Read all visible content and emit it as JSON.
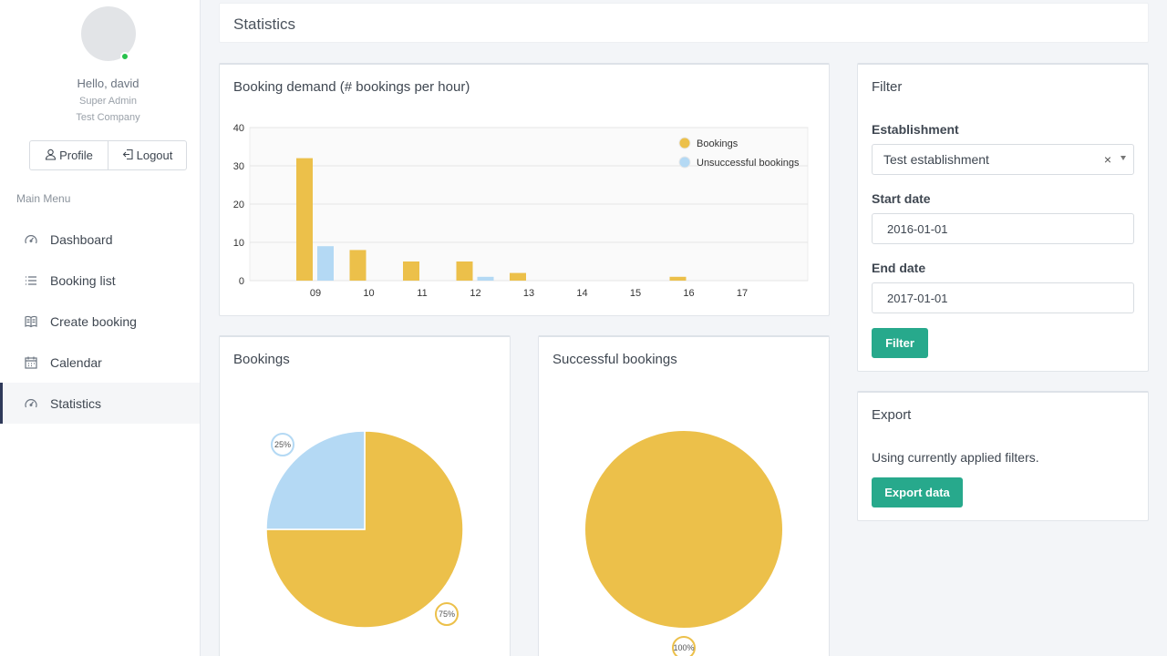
{
  "user": {
    "greeting": "Hello, david",
    "role": "Super Admin",
    "company": "Test Company",
    "profile_label": "Profile",
    "logout_label": "Logout"
  },
  "menu": {
    "title": "Main Menu",
    "items": [
      {
        "label": "Dashboard",
        "icon": "gauge-icon"
      },
      {
        "label": "Booking list",
        "icon": "list-icon"
      },
      {
        "label": "Create booking",
        "icon": "book-icon"
      },
      {
        "label": "Calendar",
        "icon": "calendar-icon"
      },
      {
        "label": "Statistics",
        "icon": "gauge-icon",
        "active": true
      }
    ]
  },
  "header": {
    "title": "Statistics"
  },
  "demand_panel": {
    "title": "Booking demand (# bookings per hour)"
  },
  "bookings_panel": {
    "title": "Bookings"
  },
  "successful_panel": {
    "title": "Successful bookings"
  },
  "filter": {
    "title": "Filter",
    "establishment_label": "Establishment",
    "establishment_value": "Test establishment",
    "clear_symbol": "×",
    "start_label": "Start date",
    "start_value": "2016-01-01",
    "end_label": "End date",
    "end_value": "2017-01-01",
    "button_label": "Filter"
  },
  "export": {
    "title": "Export",
    "description": "Using currently applied filters.",
    "button_label": "Export data"
  },
  "colors": {
    "bookings": "#ecc04a",
    "unsuccessful": "#b4d9f4",
    "accent": "#27a98c"
  },
  "chart_data": [
    {
      "type": "bar",
      "categories": [
        "09",
        "10",
        "11",
        "12",
        "13",
        "14",
        "15",
        "16",
        "17"
      ],
      "series": [
        {
          "name": "Bookings",
          "values": [
            32,
            8,
            5,
            5,
            2,
            0,
            0,
            1,
            0
          ]
        },
        {
          "name": "Unsuccessful bookings",
          "values": [
            9,
            0,
            0,
            1,
            0,
            0,
            0,
            0,
            0
          ]
        }
      ],
      "ylim": [
        0,
        40
      ],
      "yticks": [
        0,
        10,
        20,
        30,
        40
      ],
      "grid": true,
      "legend": "top-right"
    },
    {
      "type": "pie",
      "slices": [
        {
          "value": 75,
          "label": "75%",
          "color": "#ecc04a"
        },
        {
          "value": 25,
          "label": "25%",
          "color": "#b4d9f4"
        }
      ]
    },
    {
      "type": "pie",
      "slices": [
        {
          "value": 100,
          "label": "100%",
          "color": "#ecc04a"
        }
      ]
    }
  ]
}
